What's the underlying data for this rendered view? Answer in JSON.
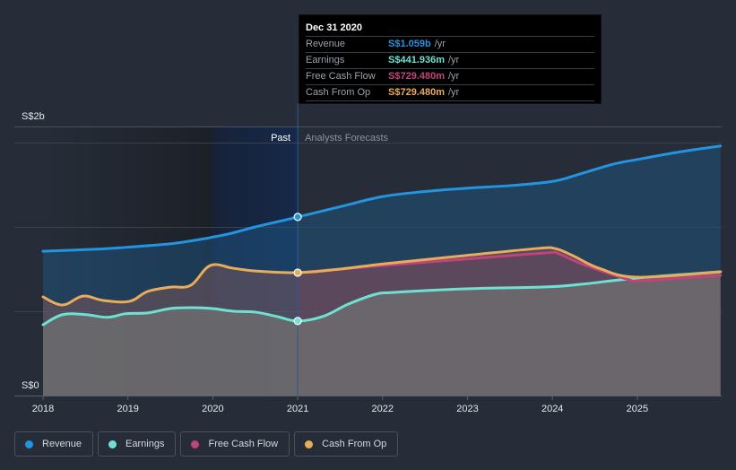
{
  "chart_data": {
    "type": "area",
    "title": "",
    "currency_prefix": "S$",
    "y_axis": {
      "top_label": "S$2b",
      "bottom_label": "S$0",
      "ylim_billions": [
        0,
        1.6
      ],
      "gridlines_billions": [
        0.5,
        1.0,
        1.5
      ]
    },
    "x_axis": {
      "tick_labels": [
        "2018",
        "2019",
        "2020",
        "2021",
        "2022",
        "2023",
        "2024",
        "2025"
      ],
      "xlim": [
        2018.0,
        2025.98
      ]
    },
    "regions": {
      "past_label": "Past",
      "forecast_label": "Analysts Forecasts",
      "divider_x": 2021.0,
      "highlight_range": [
        2020.0,
        2021.0
      ]
    },
    "series": [
      {
        "name": "Revenue",
        "color": "#2394df",
        "points": [
          [
            2018.0,
            0.856
          ],
          [
            2018.7,
            0.87
          ],
          [
            2019.0,
            0.88
          ],
          [
            2019.5,
            0.9
          ],
          [
            2019.9,
            0.93
          ],
          [
            2020.0,
            0.94
          ],
          [
            2020.2,
            0.96
          ],
          [
            2020.5,
            1.0
          ],
          [
            2021.0,
            1.059
          ],
          [
            2021.5,
            1.12
          ],
          [
            2022.0,
            1.18
          ],
          [
            2022.5,
            1.21
          ],
          [
            2023.0,
            1.23
          ],
          [
            2023.5,
            1.245
          ],
          [
            2024.0,
            1.27
          ],
          [
            2024.3,
            1.31
          ],
          [
            2024.7,
            1.37
          ],
          [
            2025.0,
            1.4
          ],
          [
            2025.5,
            1.445
          ],
          [
            2025.98,
            1.48
          ]
        ]
      },
      {
        "name": "Earnings",
        "color": "#6ee1d2",
        "points": [
          [
            2018.0,
            0.42
          ],
          [
            2018.23,
            0.48
          ],
          [
            2018.5,
            0.48
          ],
          [
            2018.76,
            0.464
          ],
          [
            2018.97,
            0.485
          ],
          [
            2019.23,
            0.49
          ],
          [
            2019.5,
            0.516
          ],
          [
            2019.76,
            0.521
          ],
          [
            2020.0,
            0.516
          ],
          [
            2020.24,
            0.5
          ],
          [
            2020.5,
            0.495
          ],
          [
            2020.76,
            0.468
          ],
          [
            2021.0,
            0.442
          ],
          [
            2021.3,
            0.47
          ],
          [
            2021.6,
            0.543
          ],
          [
            2021.92,
            0.601
          ],
          [
            2022.13,
            0.612
          ],
          [
            2022.97,
            0.633
          ],
          [
            2023.92,
            0.644
          ],
          [
            2024.34,
            0.66
          ],
          [
            2025.0,
            0.697
          ],
          [
            2025.98,
            0.734
          ]
        ]
      },
      {
        "name": "Free Cash Flow",
        "color": "#c1437c",
        "points": [
          [
            2021.0,
            0.729
          ],
          [
            2022.0,
            0.771
          ],
          [
            2022.97,
            0.809
          ],
          [
            2023.92,
            0.846
          ],
          [
            2024.08,
            0.84
          ],
          [
            2024.34,
            0.782
          ],
          [
            2024.87,
            0.692
          ],
          [
            2025.08,
            0.681
          ],
          [
            2025.98,
            0.713
          ]
        ]
      },
      {
        "name": "Cash From Op",
        "color": "#e9ac5b",
        "points": [
          [
            2018.0,
            0.585
          ],
          [
            2018.23,
            0.537
          ],
          [
            2018.47,
            0.59
          ],
          [
            2018.71,
            0.564
          ],
          [
            2019.02,
            0.559
          ],
          [
            2019.23,
            0.617
          ],
          [
            2019.5,
            0.643
          ],
          [
            2019.74,
            0.654
          ],
          [
            2019.97,
            0.771
          ],
          [
            2020.24,
            0.755
          ],
          [
            2020.5,
            0.739
          ],
          [
            2021.0,
            0.729
          ],
          [
            2021.5,
            0.75
          ],
          [
            2022.03,
            0.782
          ],
          [
            2022.97,
            0.83
          ],
          [
            2023.82,
            0.872
          ],
          [
            2024.03,
            0.872
          ],
          [
            2024.24,
            0.83
          ],
          [
            2024.55,
            0.755
          ],
          [
            2025.0,
            0.702
          ],
          [
            2025.98,
            0.734
          ]
        ]
      }
    ],
    "tooltip": {
      "date": "Dec 31 2020",
      "rows": [
        {
          "label": "Revenue",
          "value": "S$1.059b",
          "unit": "/yr",
          "color": "#2394df"
        },
        {
          "label": "Earnings",
          "value": "S$441.936m",
          "unit": "/yr",
          "color": "#6ee1d2"
        },
        {
          "label": "Free Cash Flow",
          "value": "S$729.480m",
          "unit": "/yr",
          "color": "#c1437c"
        },
        {
          "label": "Cash From Op",
          "value": "S$729.480m",
          "unit": "/yr",
          "color": "#e9ac5b"
        }
      ]
    },
    "legend": [
      {
        "label": "Revenue",
        "color": "#2394df"
      },
      {
        "label": "Earnings",
        "color": "#6ee1d2"
      },
      {
        "label": "Free Cash Flow",
        "color": "#c1437c"
      },
      {
        "label": "Cash From Op",
        "color": "#e9ac5b"
      }
    ]
  }
}
